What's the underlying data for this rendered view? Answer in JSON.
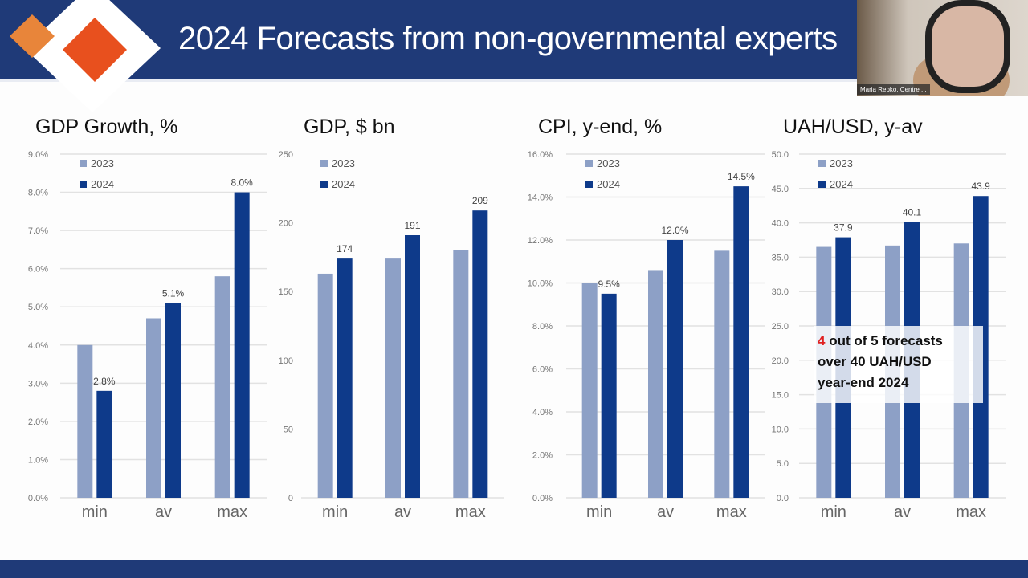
{
  "header": {
    "title": "2024 Forecasts from non-governmental experts"
  },
  "video": {
    "participant_name": "Maria Repko, Centre ..."
  },
  "colors": {
    "header": "#1f3a78",
    "series_2023": "#8da0c6",
    "series_2024": "#0e3a8a",
    "logo_orange": "#e8501e",
    "logo_orange_light": "#e8853a"
  },
  "legend": [
    "2023",
    "2024"
  ],
  "chart_data": [
    {
      "type": "bar",
      "title": "GDP Growth, %",
      "categories": [
        "min",
        "av",
        "max"
      ],
      "ylim": [
        0,
        9
      ],
      "yticks": [
        "0.0%",
        "1.0%",
        "2.0%",
        "3.0%",
        "4.0%",
        "5.0%",
        "6.0%",
        "7.0%",
        "8.0%",
        "9.0%"
      ],
      "series": [
        {
          "name": "2023",
          "values": [
            4.0,
            4.7,
            5.8
          ]
        },
        {
          "name": "2024",
          "values": [
            2.8,
            5.1,
            8.0
          ]
        }
      ],
      "data_labels": [
        "2.8%",
        "5.1%",
        "8.0%"
      ],
      "grid": true,
      "legend": "top-left"
    },
    {
      "type": "bar",
      "title": "GDP, $ bn",
      "categories": [
        "min",
        "av",
        "max"
      ],
      "ylim": [
        0,
        250
      ],
      "yticks": [
        "0",
        "50",
        "100",
        "150",
        "200",
        "250"
      ],
      "series": [
        {
          "name": "2023",
          "values": [
            163,
            174,
            180
          ]
        },
        {
          "name": "2024",
          "values": [
            174,
            191,
            209
          ]
        }
      ],
      "data_labels": [
        "174",
        "191",
        "209"
      ],
      "grid": false,
      "legend": "top-left"
    },
    {
      "type": "bar",
      "title": "CPI, y-end, %",
      "categories": [
        "min",
        "av",
        "max"
      ],
      "ylim": [
        0,
        16
      ],
      "yticks": [
        "0.0%",
        "2.0%",
        "4.0%",
        "6.0%",
        "8.0%",
        "10.0%",
        "12.0%",
        "14.0%",
        "16.0%"
      ],
      "series": [
        {
          "name": "2023",
          "values": [
            10.0,
            10.6,
            11.5
          ]
        },
        {
          "name": "2024",
          "values": [
            9.5,
            12.0,
            14.5
          ]
        }
      ],
      "data_labels": [
        "9.5%",
        "12.0%",
        "14.5%"
      ],
      "grid": true,
      "legend": "top-left"
    },
    {
      "type": "bar",
      "title": "UAH/USD, y-av",
      "categories": [
        "min",
        "av",
        "max"
      ],
      "ylim": [
        0,
        50
      ],
      "yticks": [
        "0.0",
        "5.0",
        "10.0",
        "15.0",
        "20.0",
        "25.0",
        "30.0",
        "35.0",
        "40.0",
        "45.0",
        "50.0"
      ],
      "series": [
        {
          "name": "2023",
          "values": [
            36.5,
            36.7,
            37.0
          ]
        },
        {
          "name": "2024",
          "values": [
            37.9,
            40.1,
            43.9
          ]
        }
      ],
      "data_labels": [
        "37.9",
        "40.1",
        "43.9"
      ],
      "grid": true,
      "legend": "top-left"
    }
  ],
  "annotation": {
    "highlight": "4",
    "text_line1": " out of 5 forecasts",
    "text_line2": "over 40 UAH/USD",
    "text_line3": "year-end 2024"
  }
}
